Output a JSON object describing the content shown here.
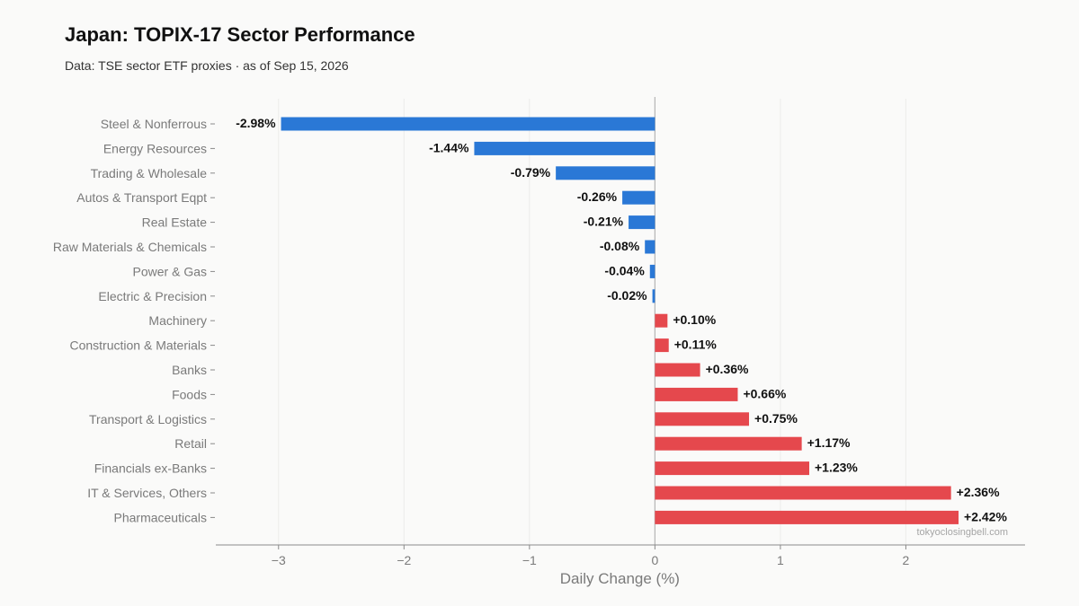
{
  "header": {
    "title": "Japan: TOPIX-17 Sector Performance",
    "subtitle": "Data: TSE sector ETF proxies · as of Sep 15, 2026"
  },
  "credit": "tokyoclosingbell.com",
  "colors": {
    "negative": "#2a78d6",
    "positive": "#e5484d",
    "grid": "#ececea",
    "zero_line": "#b5b5b5",
    "axis": "#8a8a8a"
  },
  "chart_data": {
    "type": "bar",
    "orientation": "horizontal",
    "title": "Japan: TOPIX-17 Sector Performance",
    "subtitle": "Data: TSE sector ETF proxies · as of Sep 15, 2026",
    "xlabel": "Daily Change (%)",
    "ylabel": "",
    "xlim": [
      -3.5,
      2.95
    ],
    "xticks": [
      -3,
      -2,
      -1,
      0,
      1,
      2
    ],
    "xtick_labels": [
      "−3",
      "−2",
      "−1",
      "0",
      "1",
      "2"
    ],
    "grid": "vertical",
    "categories": [
      "Steel & Nonferrous",
      "Energy Resources",
      "Trading & Wholesale",
      "Autos & Transport Eqpt",
      "Real Estate",
      "Raw Materials & Chemicals",
      "Power & Gas",
      "Electric & Precision",
      "Machinery",
      "Construction & Materials",
      "Banks",
      "Foods",
      "Transport & Logistics",
      "Retail",
      "Financials ex-Banks",
      "IT & Services, Others",
      "Pharmaceuticals"
    ],
    "values": [
      -2.98,
      -1.44,
      -0.79,
      -0.26,
      -0.21,
      -0.08,
      -0.04,
      -0.02,
      0.1,
      0.11,
      0.36,
      0.66,
      0.75,
      1.17,
      1.23,
      2.36,
      2.42
    ],
    "value_labels": [
      "-2.98%",
      "-1.44%",
      "-0.79%",
      "-0.26%",
      "-0.21%",
      "-0.08%",
      "-0.04%",
      "-0.02%",
      "+0.10%",
      "+0.11%",
      "+0.36%",
      "+0.66%",
      "+0.75%",
      "+1.17%",
      "+1.23%",
      "+2.36%",
      "+2.42%"
    ]
  }
}
